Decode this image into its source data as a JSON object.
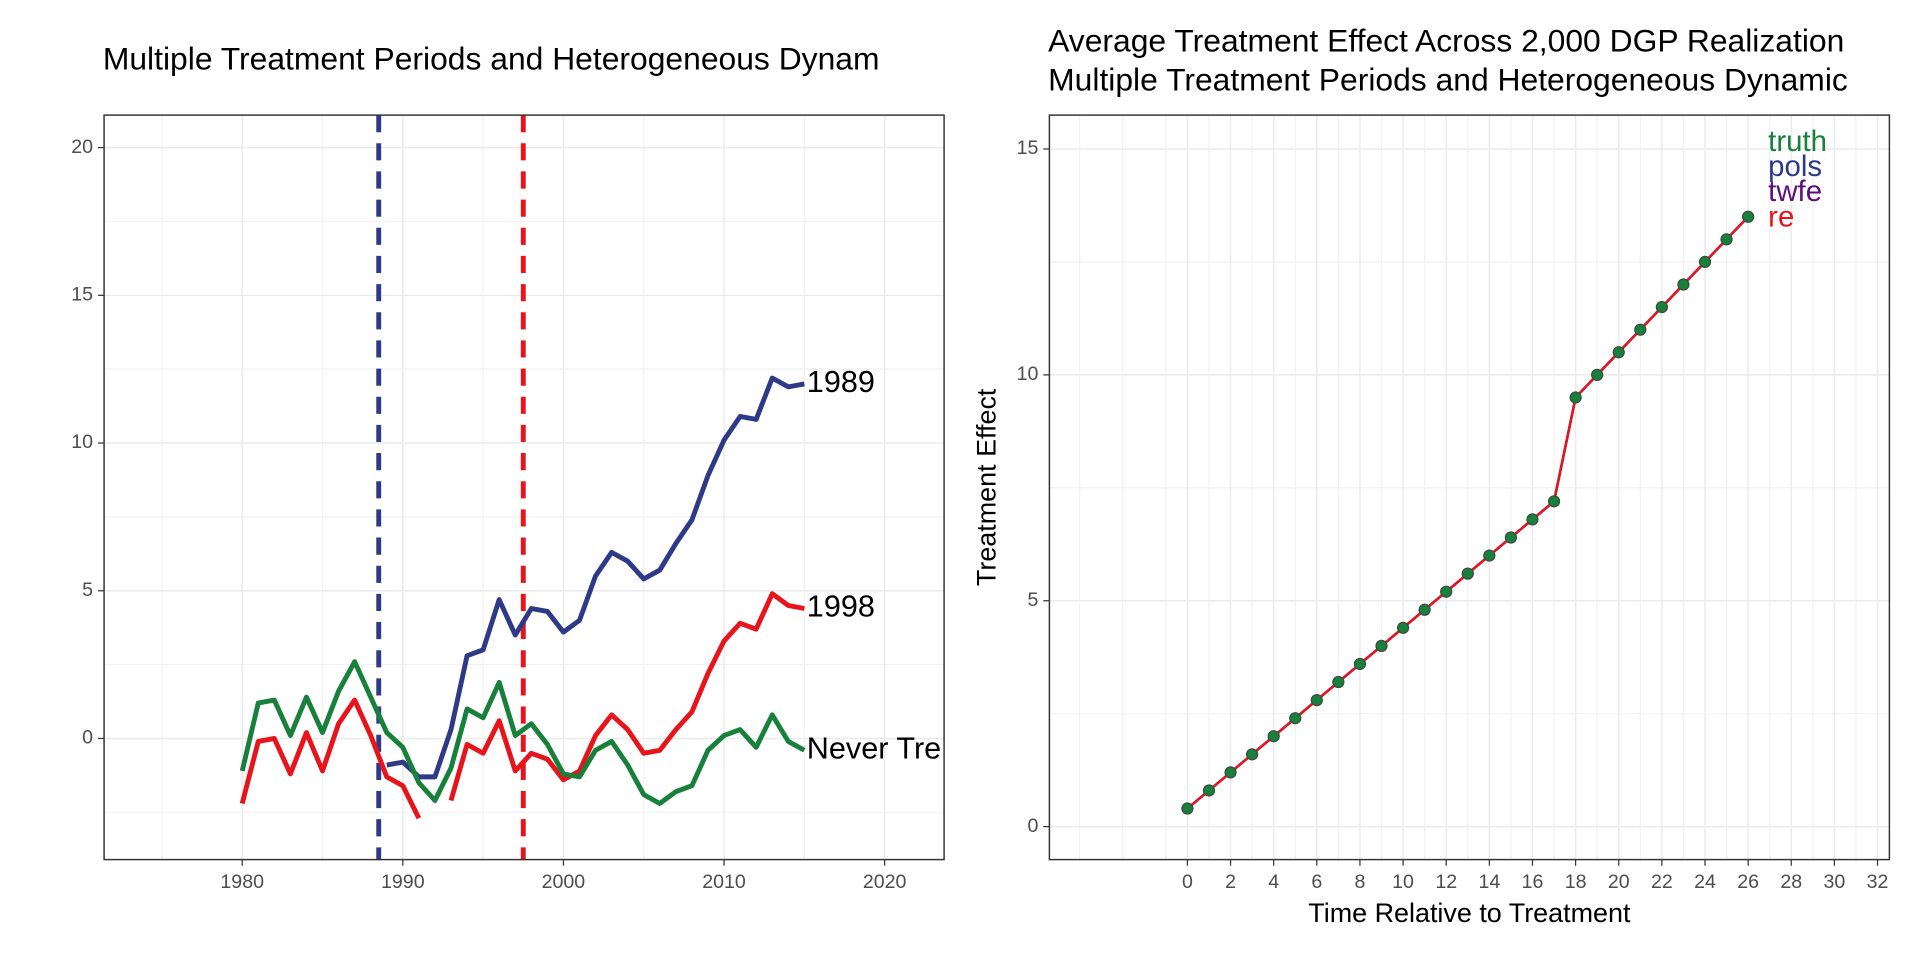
{
  "chart_data": [
    {
      "type": "line",
      "title": "Multiple Treatment Periods and Heterogeneous Dynam",
      "x": [
        1980,
        1981,
        1982,
        1983,
        1984,
        1985,
        1986,
        1987,
        1988,
        1989,
        1990,
        1991,
        1992,
        1993,
        1994,
        1995,
        1996,
        1997,
        1998,
        1999,
        2000,
        2001,
        2002,
        2003,
        2004,
        2005,
        2006,
        2007,
        2008,
        2009,
        2010,
        2011,
        2012,
        2013,
        2014,
        2015
      ],
      "series": [
        {
          "name": "1989",
          "color": "#2e3a87",
          "values": [
            null,
            null,
            null,
            null,
            null,
            null,
            null,
            null,
            null,
            -0.9,
            -0.8,
            -1.3,
            -1.3,
            0.3,
            2.8,
            3.0,
            4.7,
            3.5,
            4.4,
            4.3,
            3.6,
            4.0,
            5.5,
            6.3,
            6.0,
            5.4,
            5.7,
            6.6,
            7.4,
            8.9,
            10.1,
            10.9,
            10.8,
            12.2,
            11.9,
            12.0
          ]
        },
        {
          "name": "1998",
          "color": "#e8141b",
          "values": [
            -2.2,
            -0.1,
            0.0,
            -1.2,
            0.2,
            -1.1,
            0.5,
            1.3,
            0.1,
            -1.3,
            -1.6,
            -2.7,
            null,
            -2.1,
            -0.2,
            -0.5,
            0.6,
            -1.1,
            -0.5,
            -0.7,
            -1.4,
            -1.1,
            0.1,
            0.8,
            0.3,
            -0.5,
            -0.4,
            0.3,
            0.9,
            2.2,
            3.3,
            3.9,
            3.7,
            4.9,
            4.5,
            4.4
          ]
        },
        {
          "name": "Never Tre",
          "color": "#17803a",
          "values": [
            -1.1,
            1.2,
            1.3,
            0.1,
            1.4,
            0.2,
            1.6,
            2.6,
            1.4,
            0.2,
            -0.3,
            -1.5,
            -2.1,
            -1.0,
            1.0,
            0.7,
            1.9,
            0.1,
            0.5,
            -0.2,
            -1.2,
            -1.3,
            -0.4,
            -0.1,
            -0.9,
            -1.9,
            -2.2,
            -1.8,
            -1.6,
            -0.4,
            0.1,
            0.3,
            -0.3,
            0.8,
            -0.1,
            -0.4
          ]
        }
      ],
      "vlines": [
        {
          "value": 1988.5,
          "color": "#2e3a87"
        },
        {
          "value": 1997.5,
          "color": "#e8141b"
        }
      ],
      "labels": "line-end",
      "xlim": [
        1971.4,
        2023.7
      ],
      "xticks": [
        1980,
        1990,
        2000,
        2010,
        2020
      ],
      "ylim": [
        -4.1,
        21.1
      ],
      "yticks": [
        0,
        5,
        10,
        15,
        20
      ],
      "grid": true
    },
    {
      "type": "line",
      "title": [
        "Average Treatment Effect Across 2,000 DGP Realization",
        "Multiple Treatment Periods and Heterogeneous Dynamic"
      ],
      "x_label": "Time Relative to Treatment",
      "y_label": "Treatment Effect",
      "x": [
        0,
        1,
        2,
        3,
        4,
        5,
        6,
        7,
        8,
        9,
        10,
        11,
        12,
        13,
        14,
        15,
        16,
        17,
        18,
        19,
        20,
        21,
        22,
        23,
        24,
        25,
        26
      ],
      "series": [
        {
          "name": "truth",
          "color": "#17803a",
          "markers": true,
          "values": [
            0.4,
            0.8,
            1.2,
            1.6,
            2.0,
            2.4,
            2.8,
            3.2,
            3.6,
            4.0,
            4.4,
            4.8,
            5.2,
            5.6,
            6.0,
            6.4,
            6.8,
            7.2,
            9.5,
            10.0,
            10.5,
            11.0,
            11.5,
            12.0,
            12.5,
            13.0,
            13.5
          ]
        },
        {
          "name": "pols",
          "color": "#2e3a87",
          "values": [
            0.4,
            0.8,
            1.2,
            1.6,
            2.0,
            2.4,
            2.8,
            3.2,
            3.6,
            4.0,
            4.4,
            4.8,
            5.2,
            5.6,
            6.0,
            6.4,
            6.8,
            7.2,
            9.5,
            10.0,
            10.5,
            11.0,
            11.5,
            12.0,
            12.5,
            13.0,
            13.5
          ]
        },
        {
          "name": "twfe",
          "color": "#5b0f7a",
          "values": [
            0.4,
            0.8,
            1.2,
            1.6,
            2.0,
            2.4,
            2.8,
            3.2,
            3.6,
            4.0,
            4.4,
            4.8,
            5.2,
            5.6,
            6.0,
            6.4,
            6.8,
            7.2,
            9.5,
            10.0,
            10.5,
            11.0,
            11.5,
            12.0,
            12.5,
            13.0,
            13.5
          ]
        },
        {
          "name": "re",
          "color": "#e8141b",
          "values": [
            0.4,
            0.8,
            1.2,
            1.6,
            2.0,
            2.4,
            2.8,
            3.2,
            3.6,
            4.0,
            4.4,
            4.8,
            5.2,
            5.6,
            6.0,
            6.4,
            6.8,
            7.2,
            9.5,
            10.0,
            10.5,
            11.0,
            11.5,
            12.0,
            12.5,
            13.0,
            13.5
          ]
        }
      ],
      "legend": "top-right",
      "xlim": [
        -6.4,
        32.55
      ],
      "xticks": [
        0,
        2,
        4,
        6,
        8,
        10,
        12,
        14,
        16,
        18,
        20,
        22,
        24,
        26,
        28,
        30,
        32
      ],
      "ylim": [
        -0.73,
        15.75
      ],
      "yticks": [
        0,
        5,
        10,
        15
      ],
      "grid": true
    }
  ]
}
